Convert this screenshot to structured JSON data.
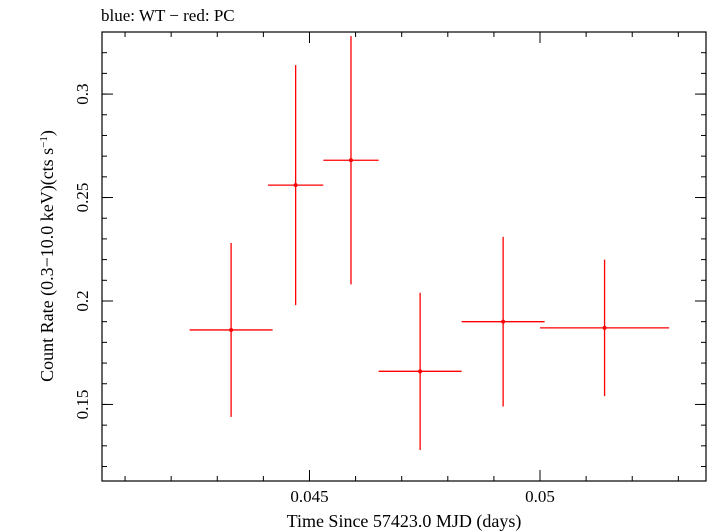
{
  "chart_data": {
    "type": "scatter",
    "title": "blue: WT − red: PC",
    "xlabel": "Time Since 57423.0 MJD (days)",
    "ylabel_main": "Count Rate (0.3−10.0 keV)(cts s",
    "ylabel_sup": "−1",
    "ylabel_end": ")",
    "xlim": [
      0.0405,
      0.0536
    ],
    "ylim": [
      0.113,
      0.33
    ],
    "x_ticks": [
      {
        "value": 0.045,
        "label": "0.045"
      },
      {
        "value": 0.05,
        "label": "0.05"
      }
    ],
    "y_ticks": [
      {
        "value": 0.15,
        "label": "0.15"
      },
      {
        "value": 0.2,
        "label": "0.2"
      },
      {
        "value": 0.25,
        "label": "0.25"
      },
      {
        "value": 0.3,
        "label": "0.3"
      }
    ],
    "x_minor_step": 0.001,
    "y_minor_step": 0.01,
    "series": [
      {
        "color": "#ff0000",
        "points": [
          {
            "x": 0.0433,
            "xerr_lo": 0.0009,
            "xerr_hi": 0.0009,
            "y": 0.186,
            "yerr_lo": 0.042,
            "yerr_hi": 0.042
          },
          {
            "x": 0.0447,
            "xerr_lo": 0.0006,
            "xerr_hi": 0.0006,
            "y": 0.256,
            "yerr_lo": 0.058,
            "yerr_hi": 0.058
          },
          {
            "x": 0.0459,
            "xerr_lo": 0.0006,
            "xerr_hi": 0.0006,
            "y": 0.268,
            "yerr_lo": 0.06,
            "yerr_hi": 0.06
          },
          {
            "x": 0.0474,
            "xerr_lo": 0.0009,
            "xerr_hi": 0.0009,
            "y": 0.166,
            "yerr_lo": 0.038,
            "yerr_hi": 0.038
          },
          {
            "x": 0.0492,
            "xerr_lo": 0.0009,
            "xerr_hi": 0.0009,
            "y": 0.19,
            "yerr_lo": 0.041,
            "yerr_hi": 0.041
          },
          {
            "x": 0.0514,
            "xerr_lo": 0.0014,
            "xerr_hi": 0.0014,
            "y": 0.187,
            "yerr_lo": 0.033,
            "yerr_hi": 0.033
          }
        ]
      }
    ],
    "grid": false,
    "colors": {
      "axis": "#000000",
      "series": "#ff0000"
    }
  }
}
